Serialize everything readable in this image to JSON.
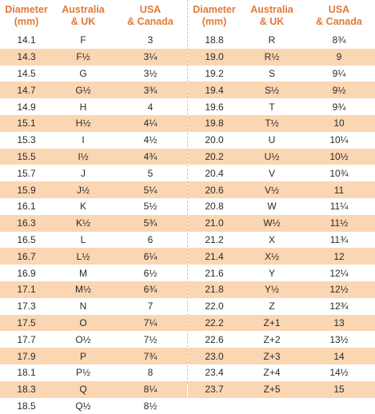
{
  "headers": {
    "diameter": [
      "Diameter",
      "(mm)"
    ],
    "au_uk": [
      "Australia",
      "& UK"
    ],
    "usa_ca": [
      "USA",
      "& Canada"
    ]
  },
  "left": [
    {
      "d": "14.1",
      "au": "F",
      "us": "3"
    },
    {
      "d": "14.3",
      "au": "F½",
      "us": "3¼"
    },
    {
      "d": "14.5",
      "au": "G",
      "us": "3½"
    },
    {
      "d": "14.7",
      "au": "G½",
      "us": "3¾"
    },
    {
      "d": "14.9",
      "au": "H",
      "us": "4"
    },
    {
      "d": "15.1",
      "au": "H½",
      "us": "4¼"
    },
    {
      "d": "15.3",
      "au": "I",
      "us": "4½"
    },
    {
      "d": "15.5",
      "au": "I½",
      "us": "4¾"
    },
    {
      "d": "15.7",
      "au": "J",
      "us": "5"
    },
    {
      "d": "15.9",
      "au": "J½",
      "us": "5¼"
    },
    {
      "d": "16.1",
      "au": "K",
      "us": "5½"
    },
    {
      "d": "16.3",
      "au": "K½",
      "us": "5¾"
    },
    {
      "d": "16.5",
      "au": "L",
      "us": "6"
    },
    {
      "d": "16.7",
      "au": "L½",
      "us": "6¼"
    },
    {
      "d": "16.9",
      "au": "M",
      "us": "6½"
    },
    {
      "d": "17.1",
      "au": "M½",
      "us": "6¾"
    },
    {
      "d": "17.3",
      "au": "N",
      "us": "7"
    },
    {
      "d": "17.5",
      "au": "O",
      "us": "7¼"
    },
    {
      "d": "17.7",
      "au": "O½",
      "us": "7½"
    },
    {
      "d": "17.9",
      "au": "P",
      "us": "7¾"
    },
    {
      "d": "18.1",
      "au": "P½",
      "us": "8"
    },
    {
      "d": "18.3",
      "au": "Q",
      "us": "8¼"
    },
    {
      "d": "18.5",
      "au": "Q½",
      "us": "8½"
    }
  ],
  "right": [
    {
      "d": "18.8",
      "au": "R",
      "us": "8¾"
    },
    {
      "d": "19.0",
      "au": "R½",
      "us": "9"
    },
    {
      "d": "19.2",
      "au": "S",
      "us": "9¼"
    },
    {
      "d": "19.4",
      "au": "S½",
      "us": "9½"
    },
    {
      "d": "19.6",
      "au": "T",
      "us": "9¾"
    },
    {
      "d": "19.8",
      "au": "T½",
      "us": "10"
    },
    {
      "d": "20.0",
      "au": "U",
      "us": "10¼"
    },
    {
      "d": "20.2",
      "au": "U½",
      "us": "10½"
    },
    {
      "d": "20.4",
      "au": "V",
      "us": "10¾"
    },
    {
      "d": "20.6",
      "au": "V½",
      "us": "11"
    },
    {
      "d": "20.8",
      "au": "W",
      "us": "11¼"
    },
    {
      "d": "21.0",
      "au": "W½",
      "us": "11½"
    },
    {
      "d": "21.2",
      "au": "X",
      "us": "11¾"
    },
    {
      "d": "21.4",
      "au": "X½",
      "us": "12"
    },
    {
      "d": "21.6",
      "au": "Y",
      "us": "12¼"
    },
    {
      "d": "21.8",
      "au": "Y½",
      "us": "12½"
    },
    {
      "d": "22.0",
      "au": "Z",
      "us": "12¾"
    },
    {
      "d": "22.2",
      "au": "Z+1",
      "us": "13"
    },
    {
      "d": "22.6",
      "au": "Z+2",
      "us": "13½"
    },
    {
      "d": "23.0",
      "au": "Z+3",
      "us": "14"
    },
    {
      "d": "23.4",
      "au": "Z+4",
      "us": "14½"
    },
    {
      "d": "23.7",
      "au": "Z+5",
      "us": "15"
    },
    {
      "d": "",
      "au": "",
      "us": ""
    }
  ],
  "colors": {
    "header_text": "#e07a3a",
    "stripe": "#fbd6b3"
  }
}
